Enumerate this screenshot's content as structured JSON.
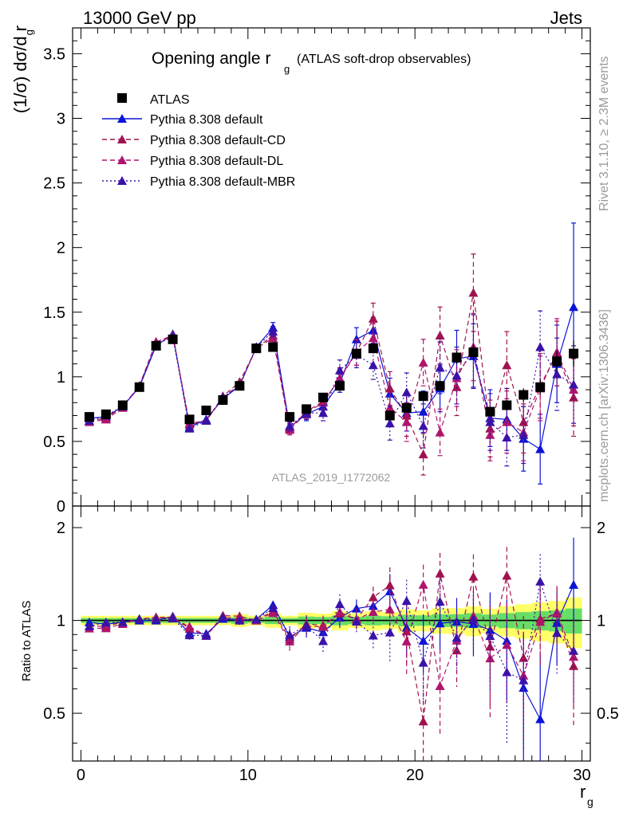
{
  "header": {
    "left": "13000 GeV pp",
    "right": "Jets"
  },
  "side": {
    "rivet": "Rivet 3.1.10, ≥ 2.3M events",
    "mcplots": "mcplots.cern.ch [arXiv:1306.3436]"
  },
  "plot": {
    "title_main": "Opening angle r",
    "title_sub": "g",
    "title_paren": "(ATLAS soft-drop observables)",
    "analysis_id": "ATLAS_2019_I1772062",
    "ylabel_main": "(1/σ) dσ/d r",
    "ylabel_sub": "g",
    "ratio_ylabel": "Ratio to ATLAS",
    "xlabel": "r",
    "xlabel_sub": "g"
  },
  "colors": {
    "atlas": "#000000",
    "default": "#0a14d6",
    "cd": "#a0124f",
    "dl": "#b0146c",
    "mbr": "#3a12a8",
    "band_inner": "#66dd66",
    "band_outer": "#ffff66"
  },
  "chart_data": {
    "type": "scatter",
    "x": [
      0.5,
      1.5,
      2.5,
      3.5,
      4.5,
      5.5,
      6.5,
      7.5,
      8.5,
      9.5,
      10.5,
      11.5,
      12.5,
      13.5,
      14.5,
      15.5,
      16.5,
      17.5,
      18.5,
      19.5,
      20.5,
      21.5,
      22.5,
      23.5,
      24.5,
      25.5,
      26.5,
      27.5,
      28.5,
      29.5
    ],
    "xlim": [
      -0.5,
      30.5
    ],
    "ylim": [
      0,
      3.7
    ],
    "ratio_ylim": [
      0.35,
      2.35
    ],
    "y_ticks": [
      "0",
      "0.5",
      "1",
      "1.5",
      "2",
      "2.5",
      "3",
      "3.5"
    ],
    "x_ticks": [
      "0",
      "10",
      "20",
      "30"
    ],
    "ratio_ticks": [
      "0.5",
      "1",
      "2"
    ],
    "series": [
      {
        "name": "ATLAS",
        "key": "atlas",
        "style": "square",
        "values": [
          0.69,
          0.71,
          0.78,
          0.92,
          1.24,
          1.29,
          0.67,
          0.74,
          0.82,
          0.93,
          1.22,
          1.23,
          0.69,
          0.75,
          0.84,
          0.93,
          1.18,
          1.22,
          0.7,
          0.76,
          0.85,
          0.93,
          1.15,
          1.19,
          0.73,
          0.78,
          0.86,
          0.92,
          1.12,
          1.18
        ],
        "errors": [
          0.01,
          0.01,
          0.01,
          0.01,
          0.02,
          0.02,
          0.01,
          0.01,
          0.01,
          0.02,
          0.02,
          0.03,
          0.01,
          0.02,
          0.02,
          0.03,
          0.03,
          0.04,
          0.02,
          0.03,
          0.03,
          0.04,
          0.05,
          0.06,
          0.03,
          0.04,
          0.05,
          0.06,
          0.08,
          0.1
        ]
      },
      {
        "name": "Pythia 8.308 default",
        "key": "default",
        "style": "solid",
        "values": [
          0.68,
          0.69,
          0.77,
          0.92,
          1.24,
          1.33,
          0.61,
          0.67,
          0.83,
          0.93,
          1.23,
          1.38,
          0.61,
          0.71,
          0.77,
          0.95,
          1.29,
          1.36,
          0.87,
          0.72,
          0.73,
          0.91,
          1.14,
          1.16,
          0.68,
          0.67,
          0.52,
          0.44,
          1.1,
          1.54
        ],
        "errors": [
          0.01,
          0.01,
          0.01,
          0.02,
          0.02,
          0.02,
          0.02,
          0.02,
          0.02,
          0.03,
          0.03,
          0.04,
          0.04,
          0.05,
          0.05,
          0.07,
          0.09,
          0.1,
          0.12,
          0.14,
          0.16,
          0.18,
          0.22,
          0.25,
          0.22,
          0.24,
          0.25,
          0.27,
          0.3,
          0.65
        ]
      },
      {
        "name": "Pythia 8.308 default-CD",
        "key": "cd",
        "style": "dashed",
        "values": [
          0.66,
          0.68,
          0.77,
          0.93,
          1.27,
          1.32,
          0.63,
          0.66,
          0.85,
          0.96,
          1.22,
          1.32,
          0.6,
          0.73,
          0.81,
          0.98,
          1.19,
          1.45,
          0.91,
          0.7,
          0.4,
          1.32,
          0.92,
          1.65,
          0.6,
          1.09,
          0.65,
          0.93,
          1.18,
          0.84
        ],
        "errors": [
          0.01,
          0.01,
          0.01,
          0.02,
          0.02,
          0.02,
          0.02,
          0.02,
          0.02,
          0.03,
          0.03,
          0.04,
          0.04,
          0.05,
          0.06,
          0.08,
          0.1,
          0.12,
          0.13,
          0.16,
          0.16,
          0.22,
          0.22,
          0.3,
          0.22,
          0.26,
          0.24,
          0.25,
          0.25,
          0.3
        ]
      },
      {
        "name": "Pythia 8.308 default-DL",
        "key": "dl",
        "style": "dashed",
        "values": [
          0.65,
          0.67,
          0.76,
          0.93,
          1.27,
          1.31,
          0.64,
          0.66,
          0.84,
          0.94,
          1.22,
          1.3,
          0.59,
          0.72,
          0.8,
          0.99,
          1.19,
          1.3,
          0.76,
          0.65,
          1.11,
          0.57,
          0.99,
          1.23,
          0.55,
          0.65,
          0.57,
          0.91,
          1.19,
          0.9
        ],
        "errors": [
          0.01,
          0.01,
          0.01,
          0.02,
          0.02,
          0.02,
          0.02,
          0.02,
          0.02,
          0.03,
          0.03,
          0.04,
          0.04,
          0.05,
          0.06,
          0.08,
          0.1,
          0.11,
          0.12,
          0.15,
          0.18,
          0.18,
          0.22,
          0.26,
          0.2,
          0.24,
          0.22,
          0.25,
          0.26,
          0.28
        ]
      },
      {
        "name": "Pythia 8.308 default-MBR",
        "key": "mbr",
        "style": "dotted",
        "values": [
          0.66,
          0.7,
          0.77,
          0.93,
          1.25,
          1.31,
          0.6,
          0.66,
          0.84,
          0.93,
          1.23,
          1.35,
          0.62,
          0.72,
          0.72,
          1.05,
          1.17,
          1.09,
          0.64,
          0.88,
          0.62,
          1.07,
          1.01,
          1.2,
          0.65,
          0.53,
          0.55,
          1.23,
          1.02,
          0.94
        ],
        "errors": [
          0.01,
          0.01,
          0.01,
          0.02,
          0.02,
          0.02,
          0.02,
          0.02,
          0.02,
          0.03,
          0.03,
          0.04,
          0.04,
          0.05,
          0.06,
          0.08,
          0.1,
          0.11,
          0.13,
          0.15,
          0.17,
          0.2,
          0.22,
          0.28,
          0.22,
          0.22,
          0.22,
          0.28,
          0.28,
          0.3
        ]
      }
    ]
  }
}
